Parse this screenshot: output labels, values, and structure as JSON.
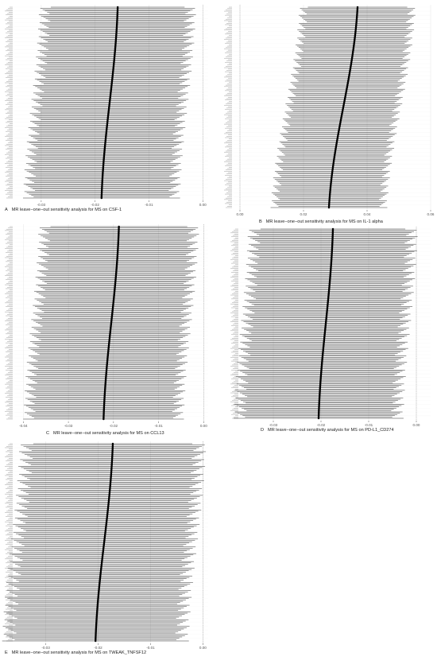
{
  "figure": {
    "panels": [
      {
        "label": "A",
        "caption": "MR leave−one−out sensitivity analysis for MS on CSF-1"
      },
      {
        "label": "B",
        "caption": "MR leave−one−out sensitivity analysis for MS on IL-1 alpha"
      },
      {
        "label": "C",
        "caption": "MR leave−one−out sensitivity analysis for MS on CCL13"
      },
      {
        "label": "D",
        "caption": "MR leave−one−out sensitivity analysis for MS on PD-L1_CD274"
      },
      {
        "label": "E",
        "caption": "MR leave−one−out sensitivity analysis for MS on TWEAK_TNFSF12"
      }
    ]
  },
  "chart_data": [
    {
      "type": "forest",
      "panel": "A",
      "xlim": [
        -0.035,
        0.001
      ],
      "ticks": [
        -0.03,
        -0.02,
        -0.01,
        0.0
      ],
      "tick_labels": [
        "-0.03",
        "-0.02",
        "-0.01",
        "0.00"
      ],
      "reference_line": 0,
      "n_snps": 150,
      "estimate_range": [
        -0.0188,
        -0.0158
      ],
      "ci_half_width": 0.0135,
      "grid": true
    },
    {
      "type": "forest",
      "panel": "B",
      "xlim": [
        -0.002,
        0.06
      ],
      "ticks": [
        0.0,
        0.02,
        0.04,
        0.06
      ],
      "tick_labels": [
        "0.00",
        "0.02",
        "0.04",
        "0.06"
      ],
      "reference_line": 0,
      "n_snps": 150,
      "estimate_range": [
        0.028,
        0.037
      ],
      "ci_half_width": 0.017,
      "grid": true
    },
    {
      "type": "forest",
      "panel": "C",
      "xlim": [
        -0.042,
        0.001
      ],
      "ticks": [
        -0.04,
        -0.03,
        -0.02,
        -0.01,
        0.0
      ],
      "tick_labels": [
        "-0.04",
        "-0.03",
        "-0.02",
        "-0.01",
        "0.00"
      ],
      "reference_line": 0,
      "n_snps": 150,
      "estimate_range": [
        -0.0222,
        -0.0188
      ],
      "ci_half_width": 0.0165,
      "grid": true
    },
    {
      "type": "forest",
      "panel": "D",
      "xlim": [
        -0.037,
        0.003
      ],
      "ticks": [
        -0.03,
        -0.02,
        -0.01,
        0.0
      ],
      "tick_labels": [
        "-0.03",
        "-0.02",
        "-0.01",
        "0.00"
      ],
      "reference_line": 0,
      "n_snps": 150,
      "estimate_range": [
        -0.0205,
        -0.0175
      ],
      "ci_half_width": 0.0165,
      "grid": true
    },
    {
      "type": "forest",
      "panel": "E",
      "xlim": [
        -0.036,
        0.001
      ],
      "ticks": [
        -0.03,
        -0.02,
        -0.01,
        0.0
      ],
      "tick_labels": [
        "-0.03",
        "-0.02",
        "-0.01",
        "0.00"
      ],
      "reference_line": 0,
      "n_snps": 150,
      "estimate_range": [
        -0.0205,
        -0.0172
      ],
      "ci_half_width": 0.0165,
      "grid": true
    }
  ]
}
